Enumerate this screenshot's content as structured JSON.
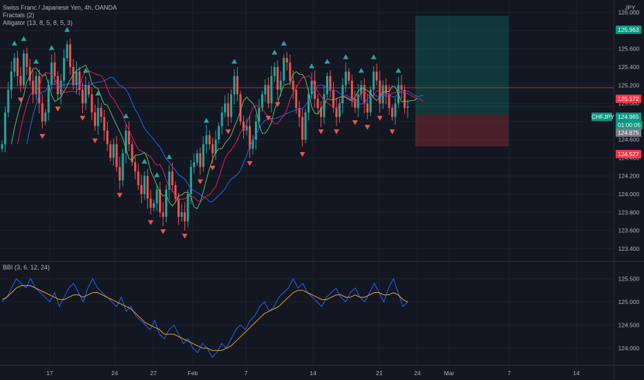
{
  "legend": {
    "title": "Swiss Franc / Japanese Yen, 4h, OANDA",
    "ind1": "Fractals (2)",
    "ind2": "Alligator (13, 8, 5, 8, 5, 3)",
    "ind3": "BBI (3, 6, 12, 24)"
  },
  "currency": "JPY",
  "symbol": "CHFJPY",
  "price_axis_ticks": [
    "126.000",
    "125.800",
    "125.600",
    "125.400",
    "125.200",
    "125.000",
    "124.800",
    "124.600",
    "124.400",
    "124.200",
    "124.000",
    "123.800",
    "123.600",
    "123.400"
  ],
  "bbi_axis_ticks": [
    "125.500",
    "125.000",
    "124.500",
    "124.000"
  ],
  "time_axis": [
    "17",
    "24",
    "27",
    "Feb",
    "7",
    "14",
    "21",
    "24",
    "Mar",
    "7",
    "14"
  ],
  "price_tags": {
    "target": "125.963",
    "entry": "125.172",
    "current": "124.965",
    "countdown": "01:00:05",
    "bid": "124.875",
    "stop": "124.527"
  },
  "colors": {
    "up": "#26a69a",
    "down": "#ef5350",
    "background": "#131722",
    "grid": "#1e222d",
    "jaw": "#2962ff",
    "teeth": "#e91e63",
    "lips": "#66bb6a",
    "bbi_price": "#2962ff",
    "bbi_avg": "#f5a623"
  },
  "chart_data": {
    "type": "candlestick",
    "ylim": [
      123.3,
      126.1
    ],
    "closes": [
      124.55,
      124.9,
      125.15,
      125.35,
      125.5,
      125.3,
      125.2,
      125.55,
      125.4,
      125.25,
      125.1,
      125.3,
      125.0,
      124.8,
      124.9,
      125.2,
      125.45,
      125.3,
      125.1,
      125.25,
      125.5,
      125.65,
      125.4,
      125.2,
      125.35,
      125.15,
      125.0,
      125.2,
      125.1,
      124.9,
      124.75,
      124.95,
      124.85,
      124.7,
      124.55,
      124.4,
      124.55,
      124.3,
      124.15,
      124.45,
      124.7,
      124.55,
      124.35,
      124.25,
      124.1,
      124.0,
      124.2,
      123.95,
      123.85,
      123.9,
      124.05,
      123.8,
      123.75,
      124.05,
      124.25,
      124.1,
      123.95,
      123.75,
      123.8,
      123.7,
      124.0,
      124.3,
      124.35,
      124.45,
      124.3,
      124.55,
      124.65,
      124.55,
      124.45,
      124.6,
      124.75,
      124.9,
      125.0,
      124.85,
      125.1,
      125.3,
      125.1,
      124.8,
      124.7,
      124.75,
      124.5,
      124.6,
      124.8,
      124.95,
      125.1,
      125.2,
      125.0,
      125.3,
      125.4,
      125.15,
      125.25,
      125.5,
      125.45,
      125.25,
      125.15,
      124.95,
      124.85,
      124.6,
      124.9,
      125.1,
      125.25,
      125.05,
      124.95,
      124.85,
      125.1,
      125.3,
      125.15,
      124.95,
      124.85,
      125.0,
      125.2,
      125.35,
      125.25,
      125.05,
      124.95,
      125.1,
      125.2,
      125.0,
      124.9,
      125.15,
      125.35,
      125.25,
      125.0,
      125.2,
      125.1,
      124.95,
      124.85,
      125.0,
      125.2,
      125.15,
      124.95,
      124.965
    ]
  },
  "bbi_chart": {
    "type": "line",
    "ylim": [
      123.7,
      125.7
    ],
    "series": [
      {
        "name": "bbi-price",
        "values": [
          125.0,
          125.1,
          125.3,
          125.5,
          125.4,
          125.3,
          125.5,
          125.3,
          125.2,
          125.1,
          125.0,
          125.2,
          124.9,
          125.1,
          125.3,
          125.4,
          125.2,
          125.0,
          125.3,
          125.5,
          125.3,
          125.2,
          125.1,
          125.0,
          124.9,
          125.1,
          124.8,
          124.9,
          124.7,
          124.6,
          124.5,
          124.4,
          124.6,
          124.3,
          124.2,
          124.4,
          124.5,
          124.3,
          124.1,
          124.2,
          124.0,
          123.9,
          124.1,
          124.0,
          123.8,
          123.9,
          124.1,
          124.0,
          124.2,
          124.4,
          124.5,
          124.4,
          124.6,
          124.7,
          124.9,
          125.0,
          124.8,
          124.9,
          125.1,
          125.2,
          125.3,
          125.5,
          125.3,
          125.4,
          125.2,
          125.1,
          125.0,
          124.9,
          125.1,
          125.2,
          125.3,
          125.1,
          125.0,
          125.2,
          125.3,
          125.1,
          125.0,
          125.2,
          125.4,
          125.2,
          125.0,
          125.3,
          125.5,
          125.2,
          124.9,
          125.0
        ]
      },
      {
        "name": "bbi-average",
        "values": [
          125.05,
          125.1,
          125.2,
          125.3,
          125.35,
          125.35,
          125.35,
          125.3,
          125.25,
          125.2,
          125.15,
          125.1,
          125.05,
          125.05,
          125.1,
          125.15,
          125.15,
          125.1,
          125.15,
          125.2,
          125.2,
          125.15,
          125.1,
          125.05,
          125.0,
          124.95,
          124.9,
          124.85,
          124.75,
          124.65,
          124.55,
          124.5,
          124.45,
          124.4,
          124.3,
          124.3,
          124.3,
          124.25,
          124.2,
          124.15,
          124.1,
          124.05,
          124.0,
          124.0,
          123.95,
          123.95,
          123.95,
          124.0,
          124.05,
          124.15,
          124.25,
          124.35,
          124.45,
          124.55,
          124.65,
          124.75,
          124.8,
          124.85,
          124.9,
          125.0,
          125.1,
          125.2,
          125.25,
          125.25,
          125.2,
          125.15,
          125.1,
          125.05,
          125.05,
          125.1,
          125.15,
          125.15,
          125.1,
          125.1,
          125.15,
          125.1,
          125.1,
          125.15,
          125.2,
          125.2,
          125.15,
          125.15,
          125.2,
          125.15,
          125.05,
          125.0
        ]
      }
    ]
  }
}
